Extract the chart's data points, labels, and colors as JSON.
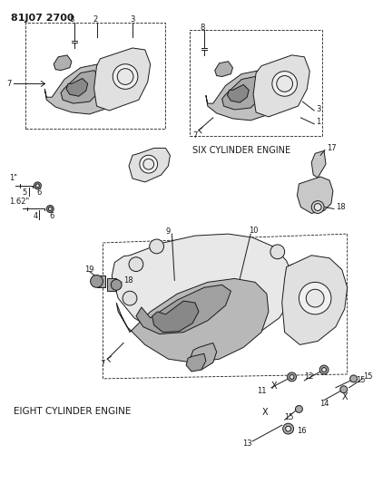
{
  "title": "81J07 2700",
  "bg": "#ffffff",
  "lc": "#1a1a1a",
  "tc": "#1a1a1a",
  "gray1": "#b0b0b0",
  "gray2": "#d0d0d0",
  "gray3": "#e8e8e8",
  "six_cyl_label": "SIX CYLINDER ENGINE",
  "eight_cyl_label": "EIGHT CYLINDER ENGINE",
  "bolt1": "1\"",
  "bolt2": "1.62\"",
  "fig_w": 4.11,
  "fig_h": 5.33,
  "dpi": 100
}
